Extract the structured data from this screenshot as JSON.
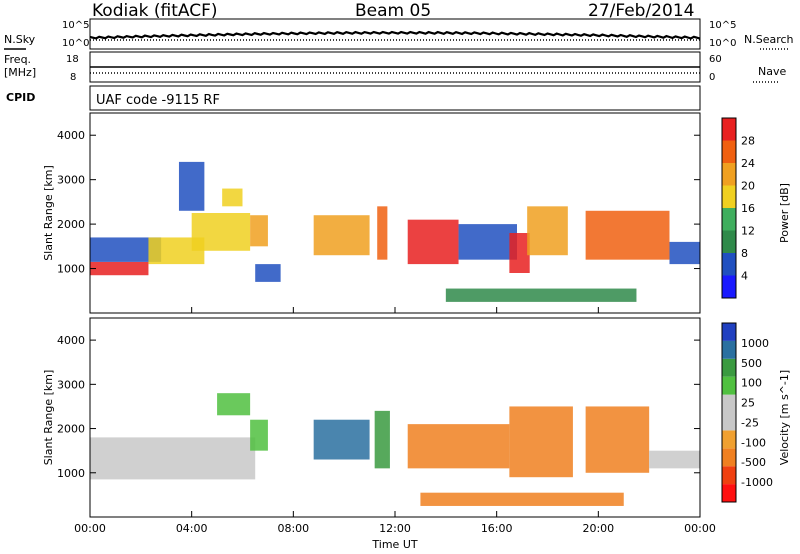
{
  "header": {
    "station": "Kodiak (fitACF)",
    "beam": "Beam 05",
    "date": "27/Feb/2014"
  },
  "top_labels": {
    "nsky": "N.Sky",
    "nsearch": "N.Search",
    "freq": "Freq.",
    "mhz": "[MHz]",
    "nave": "Nave",
    "cpid": "CPID",
    "cpid_value": "UAF code -9115 RF",
    "ten5_left": "10^5",
    "ten0_left": "10^0",
    "ten5_right": "10^5",
    "ten0_right": "10^0",
    "freq_top": "18",
    "freq_bottom": "8",
    "nave_top": "60",
    "nave_bottom": "0"
  },
  "colors": {
    "power_scale": [
      "#1a1aff",
      "#2050c0",
      "#2f8a4a",
      "#3fae5e",
      "#f0d020",
      "#f0a020",
      "#f06010",
      "#e82020"
    ],
    "velocity_scale": [
      "#ff1010",
      "#f04010",
      "#f08020",
      "#f0a030",
      "#c8c8c8",
      "#c8c8c8",
      "#50c040",
      "#3a9a40",
      "#2a70a0",
      "#2040c0"
    ],
    "ground_scatter": "#c0c0c0"
  },
  "chart_data": [
    {
      "type": "heatmap",
      "panel": "power",
      "xlabel": "Time UT",
      "ylabel": "Slant Range [km]",
      "colorbar_label": "Power [dB]",
      "colorbar_ticks": [
        "4",
        "8",
        "12",
        "16",
        "20",
        "24",
        "28"
      ],
      "ylim": [
        0,
        4500
      ],
      "yticks": [
        1000,
        2000,
        3000,
        4000
      ],
      "xlim": [
        0,
        24
      ],
      "xticks": [
        "00:00",
        "04:00",
        "08:00",
        "12:00",
        "16:00",
        "20:00",
        "00:00"
      ],
      "blobs": [
        {
          "t0": 0.0,
          "t1": 2.3,
          "r0": 850,
          "r1": 1150,
          "level": 7
        },
        {
          "t0": 0.0,
          "t1": 2.8,
          "r0": 1150,
          "r1": 1700,
          "level": 1
        },
        {
          "t0": 2.3,
          "t1": 4.5,
          "r0": 1100,
          "r1": 1700,
          "level": 4
        },
        {
          "t0": 4.0,
          "t1": 6.3,
          "r0": 1400,
          "r1": 2250,
          "level": 4
        },
        {
          "t0": 3.5,
          "t1": 4.5,
          "r0": 2300,
          "r1": 3400,
          "level": 1
        },
        {
          "t0": 5.2,
          "t1": 6.0,
          "r0": 2400,
          "r1": 2800,
          "level": 4
        },
        {
          "t0": 6.3,
          "t1": 7.0,
          "r0": 1500,
          "r1": 2200,
          "level": 5
        },
        {
          "t0": 6.5,
          "t1": 7.5,
          "r0": 700,
          "r1": 1100,
          "level": 1
        },
        {
          "t0": 8.8,
          "t1": 11.0,
          "r0": 1300,
          "r1": 2200,
          "level": 5
        },
        {
          "t0": 11.3,
          "t1": 11.7,
          "r0": 1200,
          "r1": 2400,
          "level": 6
        },
        {
          "t0": 12.5,
          "t1": 14.5,
          "r0": 1100,
          "r1": 2100,
          "level": 7
        },
        {
          "t0": 14.5,
          "t1": 16.8,
          "r0": 1200,
          "r1": 2000,
          "level": 1
        },
        {
          "t0": 16.5,
          "t1": 17.3,
          "r0": 900,
          "r1": 1800,
          "level": 7
        },
        {
          "t0": 17.2,
          "t1": 18.8,
          "r0": 1300,
          "r1": 2400,
          "level": 5
        },
        {
          "t0": 19.5,
          "t1": 22.8,
          "r0": 1200,
          "r1": 2300,
          "level": 6
        },
        {
          "t0": 22.8,
          "t1": 24.0,
          "r0": 1100,
          "r1": 1600,
          "level": 1
        },
        {
          "t0": 14.0,
          "t1": 21.5,
          "r0": 250,
          "r1": 550,
          "level": 2
        }
      ]
    },
    {
      "type": "heatmap",
      "panel": "velocity",
      "xlabel": "Time UT",
      "ylabel": "Slant Range [km]",
      "colorbar_label": "Velocity [m s^-1]",
      "colorbar_ticks": [
        "1000",
        "500",
        "100",
        "25",
        "-25",
        "-100",
        "-500",
        "-1000"
      ],
      "ylim": [
        0,
        4500
      ],
      "yticks": [
        1000,
        2000,
        3000,
        4000
      ],
      "xlim": [
        0,
        24
      ],
      "xticks": [
        "00:00",
        "04:00",
        "08:00",
        "12:00",
        "16:00",
        "20:00",
        "00:00"
      ],
      "blobs": [
        {
          "t0": 0.0,
          "t1": 6.5,
          "r0": 850,
          "r1": 1800,
          "level": 4
        },
        {
          "t0": 5.0,
          "t1": 6.3,
          "r0": 2300,
          "r1": 2800,
          "level": 6
        },
        {
          "t0": 6.3,
          "t1": 7.0,
          "r0": 1500,
          "r1": 2200,
          "level": 6
        },
        {
          "t0": 8.8,
          "t1": 11.0,
          "r0": 1300,
          "r1": 2200,
          "level": 8
        },
        {
          "t0": 11.2,
          "t1": 11.8,
          "r0": 1100,
          "r1": 2400,
          "level": 7
        },
        {
          "t0": 12.5,
          "t1": 16.5,
          "r0": 1100,
          "r1": 2100,
          "level": 2
        },
        {
          "t0": 16.5,
          "t1": 19.0,
          "r0": 900,
          "r1": 2500,
          "level": 2
        },
        {
          "t0": 19.5,
          "t1": 22.0,
          "r0": 1000,
          "r1": 2500,
          "level": 2
        },
        {
          "t0": 22.0,
          "t1": 24.0,
          "r0": 1100,
          "r1": 1500,
          "level": 4
        },
        {
          "t0": 13.0,
          "t1": 21.0,
          "r0": 250,
          "r1": 550,
          "level": 2
        }
      ]
    }
  ]
}
